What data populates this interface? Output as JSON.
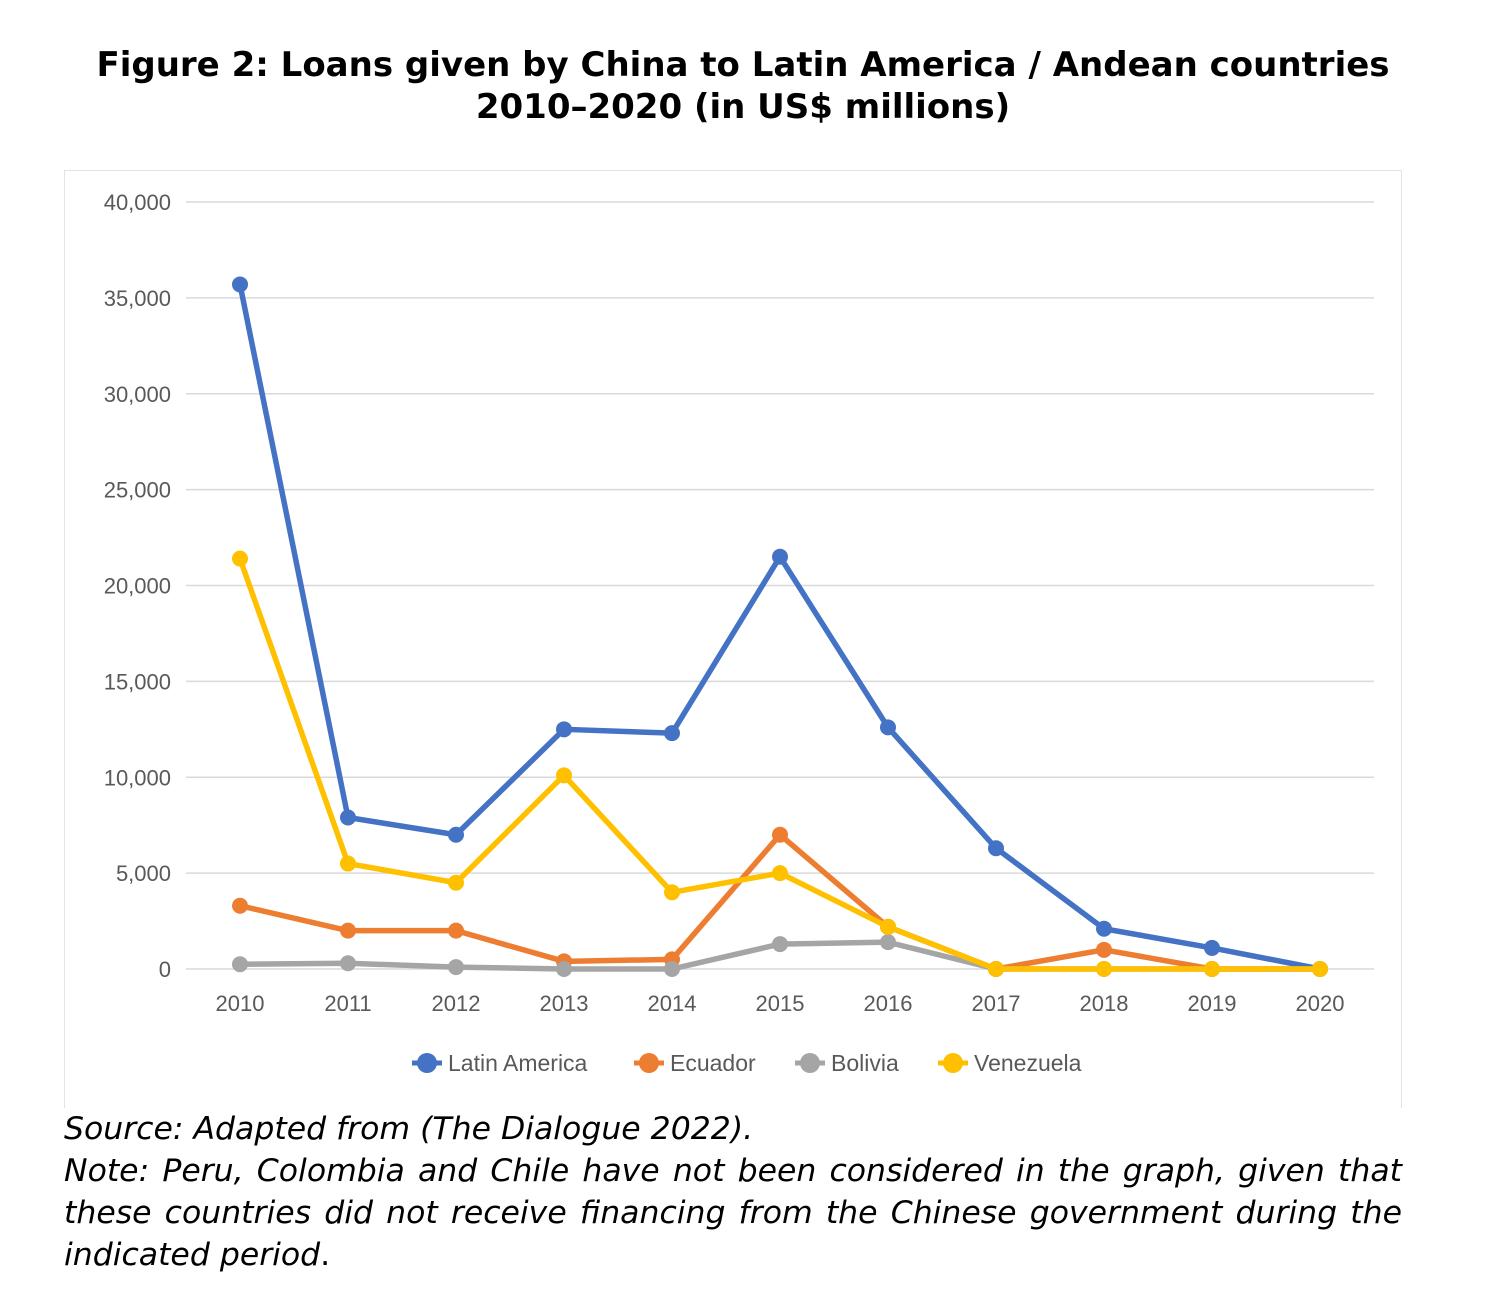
{
  "figure": {
    "title_line1": "Figure 2: Loans given by China to Latin America / Andean countries",
    "title_line2": "2010–2020 (in US$ millions)",
    "source": "Source: Adapted from (The Dialogue 2022).",
    "note": "Note: Peru, Colombia and Chile have not been considered in the graph, given that these countries did not receive financing from the Chinese government during the indicated period",
    "note_end": "."
  },
  "chart_data": {
    "type": "line",
    "title": "",
    "xlabel": "",
    "ylabel": "",
    "categories": [
      "2010",
      "2011",
      "2012",
      "2013",
      "2014",
      "2015",
      "2016",
      "2017",
      "2018",
      "2019",
      "2020"
    ],
    "ylim": [
      0,
      40000
    ],
    "yticks": [
      0,
      5000,
      10000,
      15000,
      20000,
      25000,
      30000,
      35000,
      40000
    ],
    "ytick_labels": [
      "0",
      "5,000",
      "10,000",
      "15,000",
      "20,000",
      "25,000",
      "30,000",
      "35,000",
      "40,000"
    ],
    "grid": "horizontal",
    "legend_position": "bottom",
    "series": [
      {
        "name": "Latin America",
        "color": "#4472C4",
        "values": [
          35700,
          7900,
          7000,
          12500,
          12300,
          21500,
          12600,
          6300,
          2100,
          1100,
          0
        ]
      },
      {
        "name": "Ecuador",
        "color": "#ED7D31",
        "values": [
          3300,
          2000,
          2000,
          400,
          500,
          7000,
          2200,
          0,
          1000,
          0,
          0
        ]
      },
      {
        "name": "Bolivia",
        "color": "#A5A5A5",
        "values": [
          250,
          300,
          100,
          0,
          0,
          1300,
          1400,
          0,
          0,
          0,
          0
        ]
      },
      {
        "name": "Venezuela",
        "color": "#FFC000",
        "values": [
          21400,
          5500,
          4500,
          10100,
          4000,
          5000,
          2200,
          0,
          0,
          0,
          0
        ]
      }
    ]
  }
}
